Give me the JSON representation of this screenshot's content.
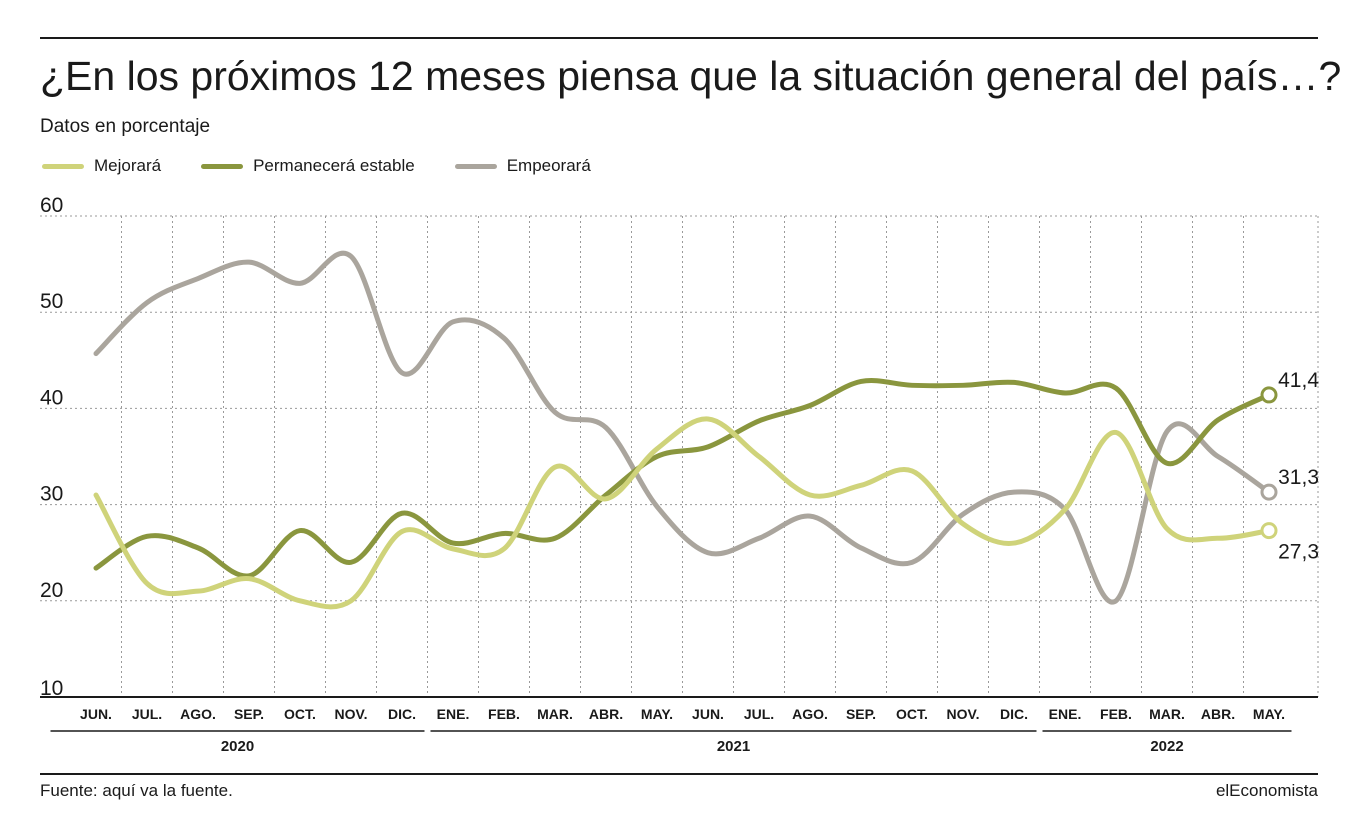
{
  "title": "¿En los próximos 12 meses piensa que la situación general del país…?",
  "subtitle": "Datos en porcentaje",
  "source": "Fuente: aquí va la fuente.",
  "brand": "elEconomista",
  "chart_data": {
    "type": "line",
    "categories": [
      "JUN.",
      "JUL.",
      "AGO.",
      "SEP.",
      "OCT.",
      "NOV.",
      "DIC.",
      "ENE.",
      "FEB.",
      "MAR.",
      "ABR.",
      "MAY.",
      "JUN.",
      "JUL.",
      "AGO.",
      "SEP.",
      "OCT.",
      "NOV.",
      "DIC.",
      "ENE.",
      "FEB.",
      "MAR.",
      "ABR.",
      "MAY."
    ],
    "years": [
      {
        "label": "2020",
        "from": 0,
        "to": 6
      },
      {
        "label": "2021",
        "from": 7,
        "to": 18
      },
      {
        "label": "2022",
        "from": 19,
        "to": 23
      }
    ],
    "ylim": [
      10,
      60
    ],
    "yticks": [
      10,
      20,
      30,
      40,
      50,
      60
    ],
    "grid": true,
    "legend_position": "top-left",
    "series": [
      {
        "name": "Mejorará",
        "color": "#cfd37a",
        "values": [
          31.0,
          21.8,
          21.0,
          22.3,
          20.0,
          20.0,
          27.2,
          25.4,
          25.4,
          33.9,
          30.6,
          35.8,
          38.9,
          35.0,
          31.0,
          32.0,
          33.5,
          28.0,
          26.0,
          29.5,
          37.5,
          27.5,
          26.5,
          27.3
        ],
        "end_label": "27,3"
      },
      {
        "name": "Permanecerá estable",
        "color": "#8a963e",
        "values": [
          23.4,
          26.7,
          25.5,
          22.6,
          27.3,
          24.0,
          29.1,
          26.0,
          27.0,
          26.5,
          31.0,
          35.0,
          36.0,
          38.7,
          40.3,
          42.8,
          42.4,
          42.4,
          42.7,
          41.6,
          42.1,
          34.3,
          38.8,
          41.4
        ],
        "end_label": "41,4"
      },
      {
        "name": "Empeorará",
        "color": "#aaa59d",
        "values": [
          45.7,
          51.0,
          53.5,
          55.2,
          53.0,
          55.8,
          43.7,
          49.0,
          47.3,
          39.6,
          38.0,
          29.8,
          25.0,
          26.5,
          28.8,
          25.5,
          24.0,
          29.0,
          31.3,
          29.5,
          20.0,
          37.6,
          35.0,
          31.3
        ],
        "end_label": "31,3"
      }
    ]
  }
}
